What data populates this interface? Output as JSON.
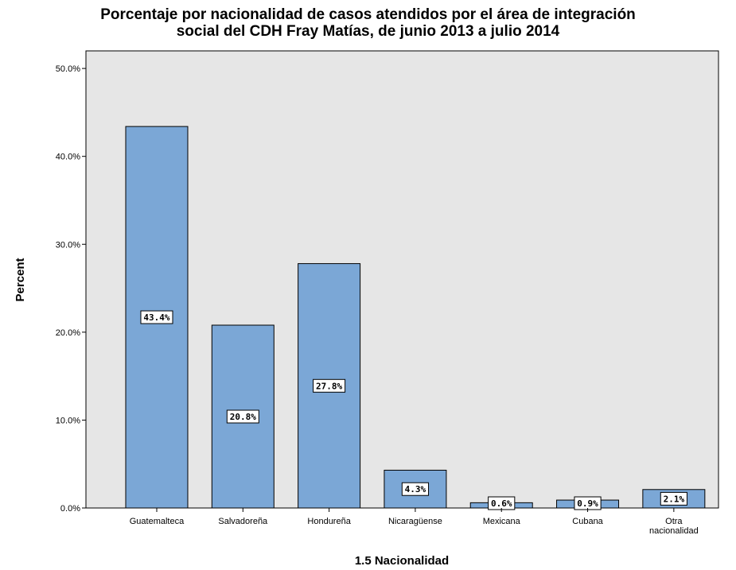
{
  "chart_data": {
    "type": "bar",
    "title_lines": [
      "Porcentaje por nacionalidad de casos atendidos por el área de integración",
      "social del CDH Fray Matías, de junio 2013 a julio 2014"
    ],
    "xlabel": "1.5 Nacionalidad",
    "ylabel": "Percent",
    "categories": [
      [
        "Guatemalteca"
      ],
      [
        "Salvadoreña"
      ],
      [
        "Hondureña"
      ],
      [
        "Nicaragüense"
      ],
      [
        "Mexicana"
      ],
      [
        "Cubana"
      ],
      [
        "Otra",
        "nacionalidad"
      ]
    ],
    "values": [
      43.4,
      20.8,
      27.8,
      4.3,
      0.6,
      0.9,
      2.1
    ],
    "data_labels": [
      "43.4%",
      "20.8%",
      "27.8%",
      "4.3%",
      "0.6%",
      "0.9%",
      "2.1%"
    ],
    "ylim": [
      0,
      52
    ],
    "yticks": [
      0,
      10,
      20,
      30,
      40,
      50
    ],
    "ytick_labels": [
      "0.0%",
      "10.0%",
      "20.0%",
      "30.0%",
      "40.0%",
      "50.0%"
    ],
    "bar_color": "#7ba7d6",
    "plot_background": "#e6e6e6",
    "grid": false
  }
}
